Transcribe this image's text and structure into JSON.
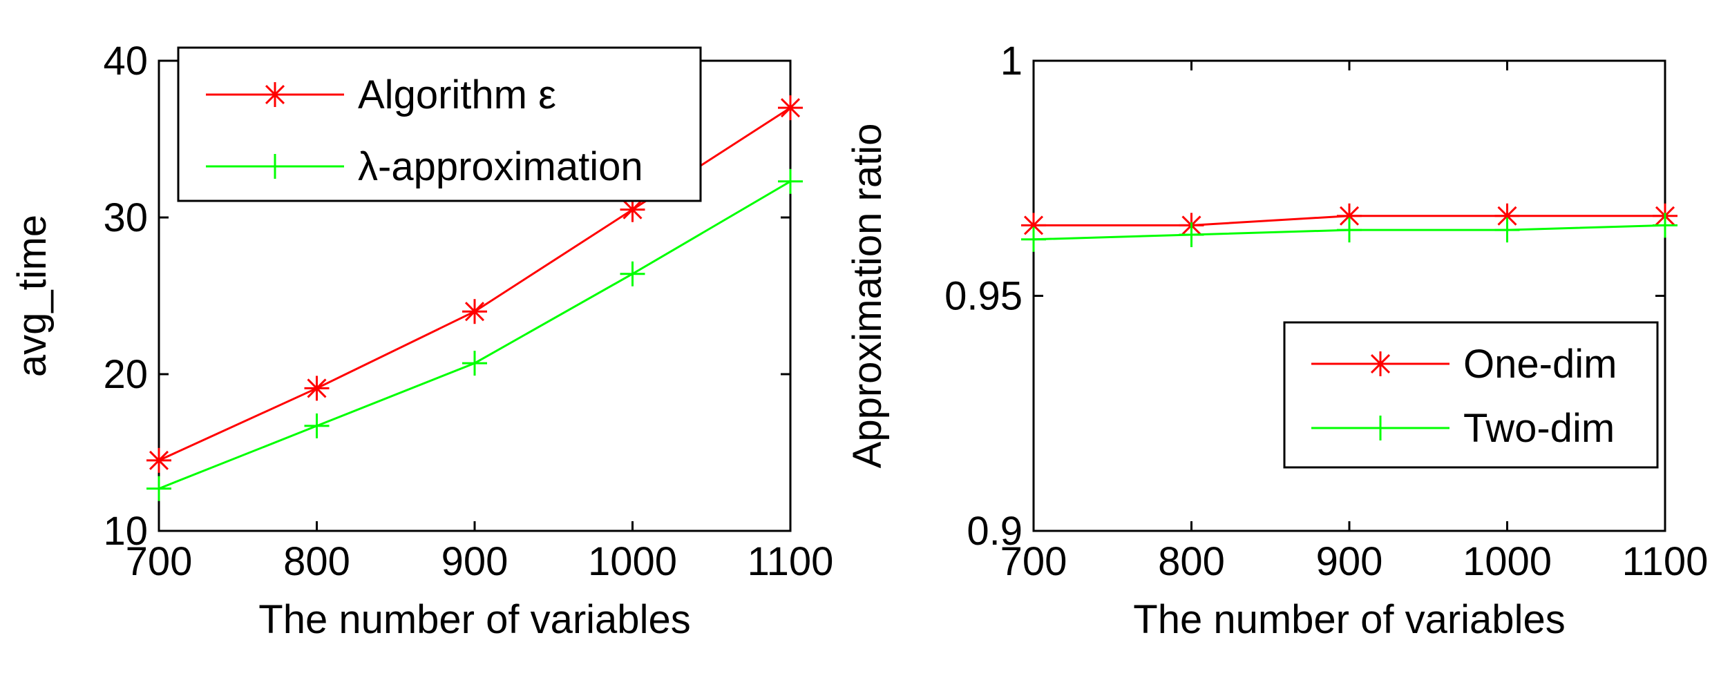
{
  "chart_data": [
    {
      "type": "line",
      "x": [
        700,
        800,
        900,
        1000,
        1100
      ],
      "xlim": [
        700,
        1100
      ],
      "ylim": [
        10,
        40
      ],
      "xticks": [
        "700",
        "800",
        "900",
        "1000",
        "1100"
      ],
      "yticks": [
        "10",
        "20",
        "30",
        "40"
      ],
      "xlabel": "The number of variables",
      "ylabel": "avg_time",
      "legend_position": "top-left",
      "series": [
        {
          "name": "Algorithm ε",
          "color": "#ff0000",
          "marker": "asterisk",
          "values": [
            14.5,
            19.1,
            24.0,
            30.5,
            37.0
          ]
        },
        {
          "name": "λ-approximation",
          "color": "#00ff00",
          "marker": "plus",
          "values": [
            12.7,
            16.7,
            20.7,
            26.4,
            32.3
          ]
        }
      ]
    },
    {
      "type": "line",
      "x": [
        700,
        800,
        900,
        1000,
        1100
      ],
      "xlim": [
        700,
        1100
      ],
      "ylim": [
        0.9,
        1.0
      ],
      "xticks": [
        "700",
        "800",
        "900",
        "1000",
        "1100"
      ],
      "yticks": [
        "0.9",
        "0.95",
        "1"
      ],
      "xlabel": "The number of variables",
      "ylabel": "Approximation ratio",
      "legend_position": "bottom-right",
      "series": [
        {
          "name": "One-dim",
          "color": "#ff0000",
          "marker": "asterisk",
          "values": [
            0.965,
            0.965,
            0.967,
            0.967,
            0.967
          ]
        },
        {
          "name": "Two-dim",
          "color": "#00ff00",
          "marker": "plus",
          "values": [
            0.962,
            0.963,
            0.964,
            0.964,
            0.965
          ]
        }
      ]
    }
  ]
}
